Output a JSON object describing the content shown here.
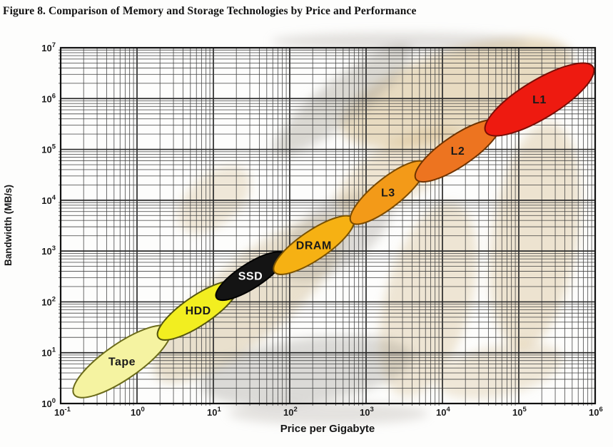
{
  "figure": {
    "title": "Figure 8. Comparison of Memory and Storage Technologies by Price and Performance"
  },
  "chart_data": {
    "type": "scatter",
    "title": "Comparison of Memory and Storage Technologies by Price and Performance",
    "xlabel": "Price per Gigabyte",
    "ylabel": "Bandwidth (MB/s)",
    "x_scale": "log",
    "y_scale": "log",
    "xlim": [
      0.1,
      1000000
    ],
    "ylim": [
      1,
      10000000
    ],
    "x_tick_exponents": [
      -1,
      0,
      1,
      2,
      3,
      4,
      5,
      6
    ],
    "y_tick_exponents": [
      0,
      1,
      2,
      3,
      4,
      5,
      6,
      7
    ],
    "tick_base": "10",
    "grid": "log-log, major and minor gridlines on",
    "legend": "labels drawn inside ellipses",
    "grid_major_color": "#2b2b2b",
    "grid_minor_color": "#3f3f3f",
    "frame_color": "#111111",
    "series": [
      {
        "name": "Tape",
        "price_range": [
          0.15,
          2.7
        ],
        "bandwidth_range": [
          1.5,
          30
        ],
        "fill": "#f5f3a1",
        "stroke": "#6b6b1a",
        "label_color": "#1a1a1a"
      },
      {
        "name": "HDD",
        "price_range": [
          1.9,
          21
        ],
        "bandwidth_range": [
          20,
          230
        ],
        "fill": "#f2ee20",
        "stroke": "#55550f",
        "label_color": "#1a1a1a"
      },
      {
        "name": "SSD",
        "price_range": [
          11,
          85
        ],
        "bandwidth_range": [
          120,
          870
        ],
        "fill": "#141414",
        "stroke": "#000000",
        "label_color": "#ffffff"
      },
      {
        "name": "DRAM",
        "price_range": [
          63,
          680
        ],
        "bandwidth_range": [
          390,
          4400
        ],
        "fill": "#f6b113",
        "stroke": "#7a5200",
        "label_color": "#1a1a1a"
      },
      {
        "name": "L3",
        "price_range": [
          640,
          5900
        ],
        "bandwidth_range": [
          3700,
          54000
        ],
        "fill": "#f39a18",
        "stroke": "#7a4a00",
        "label_color": "#1a1a1a"
      },
      {
        "name": "L2",
        "price_range": [
          4500,
          56000
        ],
        "bandwidth_range": [
          26000,
          340000
        ],
        "fill": "#ed7420",
        "stroke": "#6e3300",
        "label_color": "#1a1a1a"
      },
      {
        "name": "L1",
        "price_range": [
          37000,
          940000
        ],
        "bandwidth_range": [
          220000,
          4200000
        ],
        "fill": "#ee1a10",
        "stroke": "#7a0d05",
        "label_color": "#1a1a1a"
      }
    ]
  }
}
